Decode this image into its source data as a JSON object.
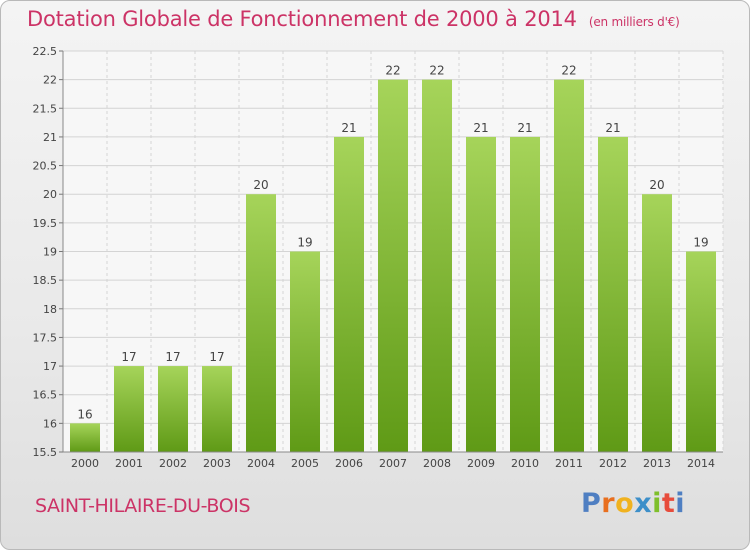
{
  "title": "Dotation Globale de Fonctionnement de 2000 à 2014",
  "unit_note": "(en milliers d'€)",
  "place_name": "SAINT-HILAIRE-DU-BOIS",
  "logo_letters": [
    "P",
    "r",
    "o",
    "x",
    "i",
    "t",
    "i"
  ],
  "colors": {
    "title": "#cc3366",
    "bar_light": "#a6d45a",
    "bar_dark": "#5f9a16",
    "axis_text": "#444444",
    "grid": "#d4d4d4"
  },
  "chart_data": {
    "type": "bar",
    "title": "Dotation Globale de Fonctionnement de 2000 à 2014",
    "subtitle": "(en milliers d'€)",
    "categories": [
      "2000",
      "2001",
      "2002",
      "2003",
      "2004",
      "2005",
      "2006",
      "2007",
      "2008",
      "2009",
      "2010",
      "2011",
      "2012",
      "2013",
      "2014"
    ],
    "values": [
      16,
      17,
      17,
      17,
      20,
      19,
      21,
      22,
      22,
      21,
      21,
      22,
      21,
      20,
      19
    ],
    "data_labels": [
      "16",
      "17",
      "17",
      "17",
      "20",
      "19",
      "21",
      "22",
      "22",
      "21",
      "21",
      "22",
      "21",
      "20",
      "19"
    ],
    "xlabel": "",
    "ylabel": "",
    "ylim": [
      15.5,
      22.5
    ],
    "yticks": [
      15.5,
      16,
      16.5,
      17,
      17.5,
      18,
      18.5,
      19,
      19.5,
      20,
      20.5,
      21,
      21.5,
      22,
      22.5
    ],
    "grid": true,
    "legend": "none"
  }
}
